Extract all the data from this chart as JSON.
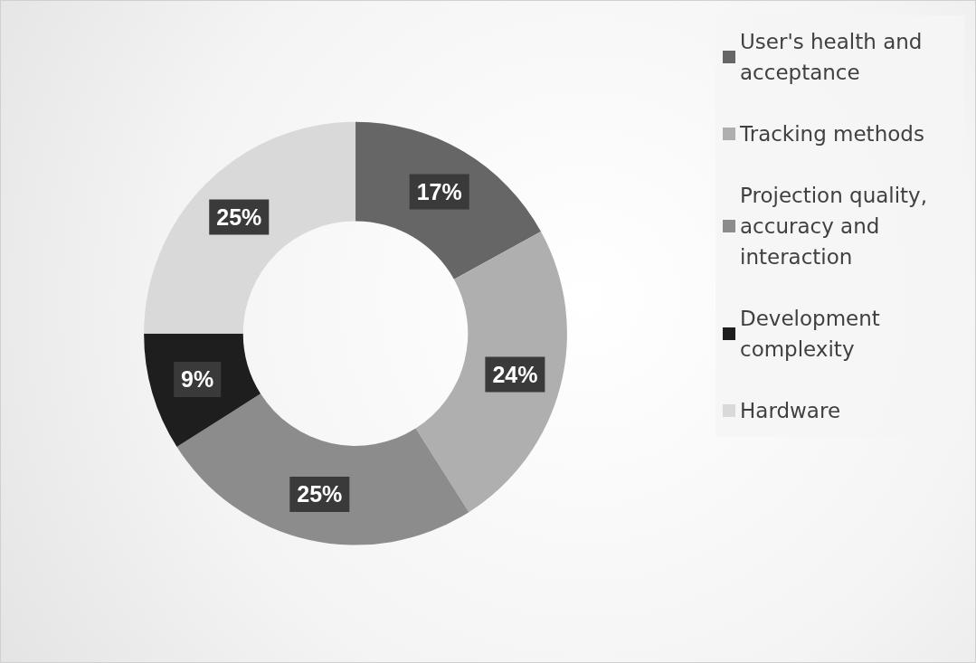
{
  "chart_data": {
    "type": "donut",
    "categories": [
      "User's health and acceptance",
      "Tracking methods",
      "Projection quality, accuracy and interaction",
      "Development complexity",
      "Hardware"
    ],
    "values": [
      17,
      24,
      25,
      9,
      25
    ],
    "colors": [
      "#666666",
      "#afafaf",
      "#8c8c8c",
      "#1e1e1e",
      "#d9d9d9"
    ],
    "value_labels": [
      "17%",
      "24%",
      "25%",
      "9%",
      "25%"
    ],
    "legend": "right"
  }
}
